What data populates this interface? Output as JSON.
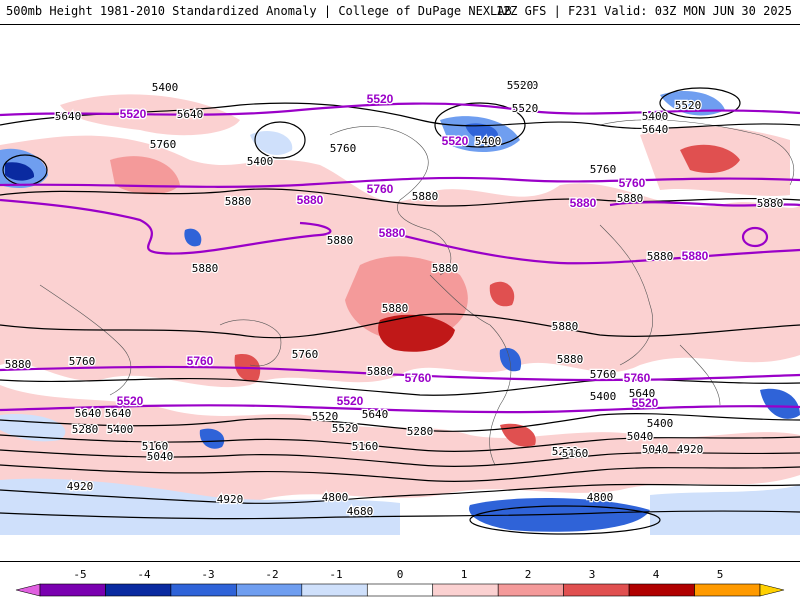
{
  "header": {
    "title": "500mb Height 1981-2010 Standardized Anomaly | College of DuPage NEXLAB",
    "run_info": "12Z GFS | F231 Valid: 03Z MON JUN 30 2025"
  },
  "colorbar": {
    "ticks": [
      "-5",
      "-4",
      "-3",
      "-2",
      "-1",
      "0",
      "1",
      "2",
      "3",
      "4",
      "5"
    ],
    "colors": [
      "#e060e0",
      "#7a00b0",
      "#0a2aa0",
      "#2f63d8",
      "#6f9ef0",
      "#cfe0fb",
      "#ffffff",
      "#fbd1d1",
      "#f49a9a",
      "#e05050",
      "#b00000",
      "#ff9a00",
      "#ffd000"
    ]
  },
  "contour_labels": {
    "black": [
      "5400",
      "5520",
      "5640",
      "5760",
      "5880",
      "5520",
      "5400",
      "5640",
      "5760",
      "5880",
      "5160",
      "5040",
      "4920",
      "4800",
      "4680",
      "5280"
    ],
    "purple": [
      "5520",
      "5760",
      "5880"
    ]
  },
  "map_labels": [
    {
      "text": "5400",
      "type": "black"
    },
    {
      "text": "5520",
      "type": "purple"
    },
    {
      "text": "5520",
      "type": "black"
    },
    {
      "text": "5640",
      "type": "black"
    },
    {
      "text": "5520",
      "type": "purple"
    },
    {
      "text": "5640",
      "type": "black"
    },
    {
      "text": "5520",
      "type": "black"
    },
    {
      "text": "5400",
      "type": "black"
    },
    {
      "text": "5520",
      "type": "purple"
    },
    {
      "text": "5400",
      "type": "black"
    },
    {
      "text": "5520",
      "type": "black"
    },
    {
      "text": "5760",
      "type": "black"
    },
    {
      "text": "5520",
      "type": "black"
    },
    {
      "text": "5760",
      "type": "black"
    },
    {
      "text": "5400",
      "type": "black"
    },
    {
      "text": "5640",
      "type": "black"
    },
    {
      "text": "5760",
      "type": "black"
    },
    {
      "text": "5760",
      "type": "purple"
    },
    {
      "text": "5760",
      "type": "purple"
    },
    {
      "text": "5880",
      "type": "black"
    },
    {
      "text": "5880",
      "type": "purple"
    },
    {
      "text": "5880",
      "type": "black"
    },
    {
      "text": "5880",
      "type": "purple"
    },
    {
      "text": "5880",
      "type": "purple"
    },
    {
      "text": "5880",
      "type": "black"
    },
    {
      "text": "5880",
      "type": "black"
    },
    {
      "text": "5880",
      "type": "black"
    },
    {
      "text": "5880",
      "type": "black"
    },
    {
      "text": "5880",
      "type": "purple"
    },
    {
      "text": "5880",
      "type": "black"
    },
    {
      "text": "5880",
      "type": "black"
    },
    {
      "text": "5880",
      "type": "black"
    },
    {
      "text": "5880",
      "type": "black"
    },
    {
      "text": "5880",
      "type": "black"
    },
    {
      "text": "5880",
      "type": "black"
    },
    {
      "text": "5760",
      "type": "black"
    },
    {
      "text": "5760",
      "type": "purple"
    },
    {
      "text": "5760",
      "type": "black"
    },
    {
      "text": "5880",
      "type": "black"
    },
    {
      "text": "5760",
      "type": "purple"
    },
    {
      "text": "5760",
      "type": "black"
    },
    {
      "text": "5760",
      "type": "purple"
    },
    {
      "text": "5400",
      "type": "black"
    },
    {
      "text": "5640",
      "type": "black"
    },
    {
      "text": "5520",
      "type": "purple"
    },
    {
      "text": "5520",
      "type": "purple"
    },
    {
      "text": "5640",
      "type": "black"
    },
    {
      "text": "5520",
      "type": "purple"
    },
    {
      "text": "5640",
      "type": "black"
    },
    {
      "text": "5520",
      "type": "black"
    },
    {
      "text": "5640",
      "type": "black"
    },
    {
      "text": "5400",
      "type": "black"
    },
    {
      "text": "5280",
      "type": "black"
    },
    {
      "text": "5400",
      "type": "black"
    },
    {
      "text": "5520",
      "type": "black"
    },
    {
      "text": "5280",
      "type": "black"
    },
    {
      "text": "5160",
      "type": "black"
    },
    {
      "text": "5040",
      "type": "black"
    },
    {
      "text": "5160",
      "type": "black"
    },
    {
      "text": "5280",
      "type": "black"
    },
    {
      "text": "5040",
      "type": "black"
    },
    {
      "text": "4920",
      "type": "black"
    },
    {
      "text": "5160",
      "type": "black"
    },
    {
      "text": "4920",
      "type": "black"
    },
    {
      "text": "4920",
      "type": "black"
    },
    {
      "text": "5040",
      "type": "black"
    },
    {
      "text": "4800",
      "type": "black"
    },
    {
      "text": "4800",
      "type": "black"
    },
    {
      "text": "4680",
      "type": "black"
    }
  ]
}
